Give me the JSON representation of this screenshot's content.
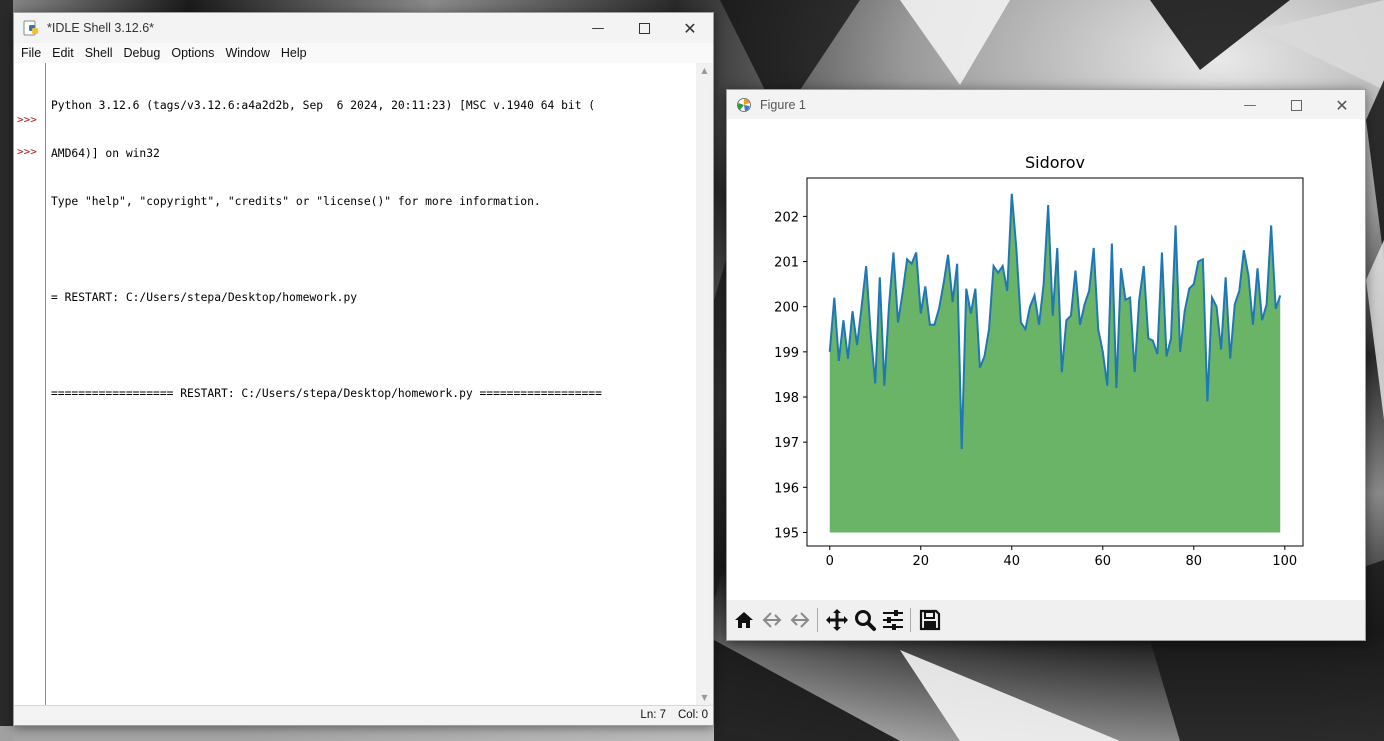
{
  "idle": {
    "title": "*IDLE Shell 3.12.6*",
    "menu": [
      "File",
      "Edit",
      "Shell",
      "Debug",
      "Options",
      "Window",
      "Help"
    ],
    "lines": [
      "Python 3.12.6 (tags/v3.12.6:a4a2d2b, Sep  6 2024, 20:11:23) [MSC v.1940 64 bit (",
      "AMD64)] on win32",
      "Type \"help\", \"copyright\", \"credits\" or \"license()\" for more information.",
      "",
      "= RESTART: C:/Users/stepa/Desktop/homework.py",
      "",
      "================== RESTART: C:/Users/stepa/Desktop/homework.py =================="
    ],
    "prompts": [
      ">>>",
      ">>>"
    ],
    "status_ln": "Ln: 7",
    "status_col": "Col: 0"
  },
  "figure": {
    "title": "Figure 1",
    "toolbar_icons": [
      "home-icon",
      "back-icon",
      "forward-icon",
      "pan-icon",
      "zoom-icon",
      "configure-icon",
      "save-icon"
    ]
  },
  "colors": {
    "fill": "#6ab467",
    "line": "#1f77b4"
  },
  "chart_data": {
    "type": "area",
    "title": "Sidorov",
    "xlabel": "",
    "ylabel": "",
    "xlim": [
      -5,
      104
    ],
    "ylim": [
      194.7,
      202.85
    ],
    "xticks": [
      0,
      20,
      40,
      60,
      80,
      100
    ],
    "yticks": [
      195,
      196,
      197,
      198,
      199,
      200,
      201,
      202
    ],
    "fill_baseline": 195,
    "x": [
      0,
      1,
      2,
      3,
      4,
      5,
      6,
      7,
      8,
      9,
      10,
      11,
      12,
      13,
      14,
      15,
      16,
      17,
      18,
      19,
      20,
      21,
      22,
      23,
      24,
      25,
      26,
      27,
      28,
      29,
      30,
      31,
      32,
      33,
      34,
      35,
      36,
      37,
      38,
      39,
      40,
      41,
      42,
      43,
      44,
      45,
      46,
      47,
      48,
      49,
      50,
      51,
      52,
      53,
      54,
      55,
      56,
      57,
      58,
      59,
      60,
      61,
      62,
      63,
      64,
      65,
      66,
      67,
      68,
      69,
      70,
      71,
      72,
      73,
      74,
      75,
      76,
      77,
      78,
      79,
      80,
      81,
      82,
      83,
      84,
      85,
      86,
      87,
      88,
      89,
      90,
      91,
      92,
      93,
      94,
      95,
      96,
      97,
      98,
      99
    ],
    "y": [
      199.0,
      200.2,
      198.8,
      199.7,
      198.85,
      199.9,
      199.15,
      200.0,
      200.9,
      199.4,
      198.3,
      200.65,
      198.25,
      200.0,
      201.2,
      199.65,
      200.3,
      201.05,
      200.95,
      201.2,
      199.85,
      200.45,
      199.6,
      199.6,
      199.95,
      200.5,
      201.15,
      200.1,
      200.95,
      196.85,
      200.4,
      199.85,
      200.4,
      198.65,
      198.9,
      199.5,
      200.9,
      200.75,
      200.9,
      200.35,
      202.5,
      201.3,
      199.65,
      199.5,
      200.0,
      200.25,
      199.6,
      200.5,
      202.25,
      199.8,
      201.3,
      198.55,
      199.7,
      199.8,
      200.8,
      199.6,
      200.05,
      200.35,
      201.3,
      199.5,
      199.0,
      198.25,
      201.4,
      198.2,
      200.85,
      200.15,
      200.2,
      198.55,
      200.15,
      200.9,
      199.3,
      199.25,
      198.95,
      201.2,
      198.9,
      199.3,
      201.8,
      199.0,
      199.9,
      200.4,
      200.5,
      201.0,
      201.05,
      197.9,
      200.2,
      200.0,
      199.05,
      200.65,
      198.85,
      200.05,
      200.35,
      201.25,
      200.7,
      199.6,
      200.85,
      199.7,
      200.05,
      201.8,
      199.95,
      200.25
    ]
  }
}
